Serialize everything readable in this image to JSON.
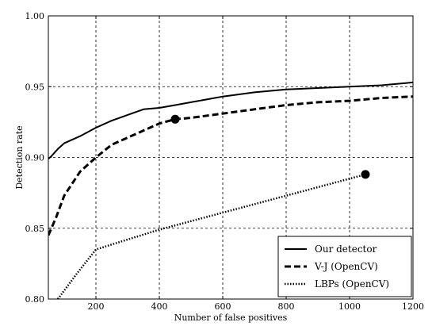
{
  "chart_data": {
    "type": "line",
    "xlabel": "Number of false positives",
    "ylabel": "Detection rate",
    "xlim": [
      50,
      1200
    ],
    "ylim": [
      0.8,
      1.0
    ],
    "x_ticks": [
      200,
      400,
      600,
      800,
      1000,
      1200
    ],
    "y_ticks": [
      0.8,
      0.85,
      0.9,
      0.95,
      1.0
    ],
    "x_tick_labels": [
      "200",
      "400",
      "600",
      "800",
      "1000",
      "1200"
    ],
    "y_tick_labels": [
      "0.80",
      "0.85",
      "0.90",
      "0.95",
      "1.00"
    ],
    "grid": true,
    "legend_position": "bottom-right",
    "series": [
      {
        "name": "Our detector",
        "style": "solid",
        "color": "#000000",
        "x": [
          50,
          60,
          80,
          100,
          150,
          200,
          250,
          300,
          350,
          400,
          450,
          500,
          600,
          700,
          800,
          900,
          1000,
          1100,
          1200
        ],
        "y": [
          0.899,
          0.901,
          0.906,
          0.91,
          0.915,
          0.921,
          0.926,
          0.93,
          0.934,
          0.935,
          0.937,
          0.939,
          0.943,
          0.946,
          0.948,
          0.949,
          0.95,
          0.951,
          0.953
        ]
      },
      {
        "name": "V-J (OpenCV)",
        "style": "dashed",
        "color": "#000000",
        "x": [
          50,
          75,
          100,
          150,
          200,
          250,
          300,
          350,
          400,
          450,
          500,
          600,
          700,
          800,
          900,
          1000,
          1100,
          1200
        ],
        "y": [
          0.845,
          0.858,
          0.873,
          0.89,
          0.9,
          0.909,
          0.914,
          0.919,
          0.924,
          0.927,
          0.928,
          0.931,
          0.934,
          0.937,
          0.939,
          0.94,
          0.942,
          0.943
        ],
        "marker": {
          "x": 450,
          "y": 0.927
        }
      },
      {
        "name": "LBPs (OpenCV)",
        "style": "dotted",
        "color": "#000000",
        "x": [
          80,
          140,
          200,
          400,
          600,
          800,
          1000,
          1050
        ],
        "y": [
          0.8,
          0.818,
          0.835,
          0.849,
          0.861,
          0.873,
          0.885,
          0.888
        ],
        "marker": {
          "x": 1050,
          "y": 0.888
        }
      }
    ]
  }
}
